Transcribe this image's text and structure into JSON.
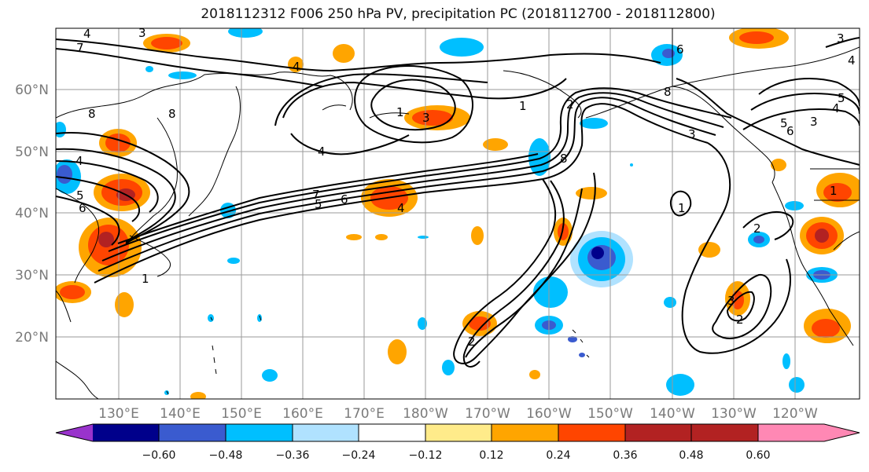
{
  "title": "2018112312 F006 250 hPa PV, precipitation PC (2018112700 - 2018112800)",
  "map": {
    "lat_labels": [
      "60°N",
      "50°N",
      "40°N",
      "30°N",
      "20°N"
    ],
    "lon_labels": [
      "130°E",
      "140°E",
      "150°E",
      "160°E",
      "170°E",
      "180°W",
      "170°W",
      "160°W",
      "150°W",
      "140°W",
      "130°W",
      "120°W"
    ],
    "pv_contour_labels": [
      "1",
      "2",
      "3",
      "4",
      "5",
      "6",
      "7",
      "8"
    ],
    "pv_color": "#000000",
    "grid_color": "#9a9a9a"
  },
  "colorbar": {
    "tick_labels": [
      "−0.60",
      "−0.48",
      "−0.36",
      "−0.24",
      "−0.12",
      "0.12",
      "0.24",
      "0.36",
      "0.48",
      "0.60"
    ],
    "colors": [
      "#9933cc",
      "#00008b",
      "#3a5bcf",
      "#00bfff",
      "#b0e2ff",
      "#ffffff",
      "#ffeb8a",
      "#ffa500",
      "#ff4500",
      "#b22222",
      "#ff88b4"
    ]
  }
}
